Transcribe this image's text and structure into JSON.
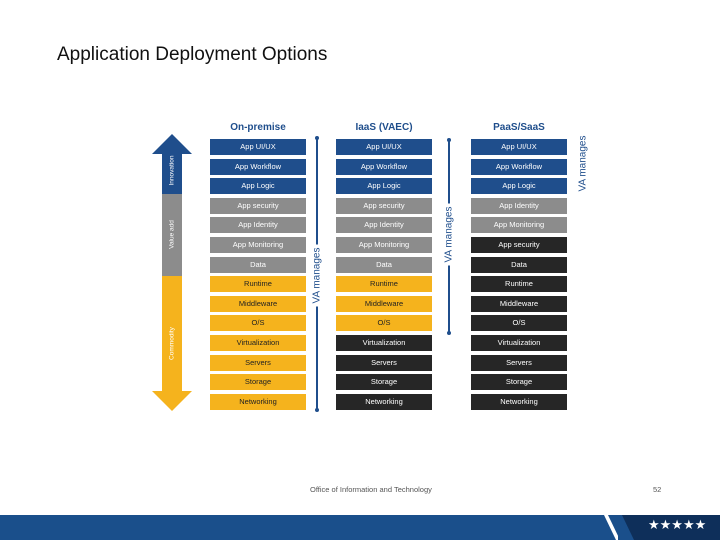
{
  "title": "Application Deployment Options",
  "columns": [
    {
      "header": "On-premise",
      "items": [
        {
          "label": "App UI/UX",
          "color": "#1f4e8c"
        },
        {
          "label": "App Workflow",
          "color": "#1f4e8c"
        },
        {
          "label": "App Logic",
          "color": "#1f4e8c"
        },
        {
          "label": "App security",
          "color": "#8c8c8c"
        },
        {
          "label": "App Identity",
          "color": "#8c8c8c"
        },
        {
          "label": "App Monitoring",
          "color": "#8c8c8c"
        },
        {
          "label": "Data",
          "color": "#8c8c8c"
        },
        {
          "label": "Runtime",
          "color": "#f5b31d"
        },
        {
          "label": "Middleware",
          "color": "#f5b31d"
        },
        {
          "label": "O/S",
          "color": "#f5b31d"
        },
        {
          "label": "Virtualization",
          "color": "#f5b31d"
        },
        {
          "label": "Servers",
          "color": "#f5b31d"
        },
        {
          "label": "Storage",
          "color": "#f5b31d"
        },
        {
          "label": "Networking",
          "color": "#f5b31d"
        }
      ]
    },
    {
      "header": "IaaS (VAEC)",
      "items": [
        {
          "label": "App UI/UX",
          "color": "#1f4e8c"
        },
        {
          "label": "App Workflow",
          "color": "#1f4e8c"
        },
        {
          "label": "App Logic",
          "color": "#1f4e8c"
        },
        {
          "label": "App security",
          "color": "#8c8c8c"
        },
        {
          "label": "App Identity",
          "color": "#8c8c8c"
        },
        {
          "label": "App Monitoring",
          "color": "#8c8c8c"
        },
        {
          "label": "Data",
          "color": "#8c8c8c"
        },
        {
          "label": "Runtime",
          "color": "#f5b31d"
        },
        {
          "label": "Middleware",
          "color": "#f5b31d"
        },
        {
          "label": "O/S",
          "color": "#f5b31d"
        },
        {
          "label": "Virtualization",
          "color": "#262626"
        },
        {
          "label": "Servers",
          "color": "#262626"
        },
        {
          "label": "Storage",
          "color": "#262626"
        },
        {
          "label": "Networking",
          "color": "#262626"
        }
      ]
    },
    {
      "header": "PaaS/SaaS",
      "items": [
        {
          "label": "App UI/UX",
          "color": "#1f4e8c"
        },
        {
          "label": "App Workflow",
          "color": "#1f4e8c"
        },
        {
          "label": "App Logic",
          "color": "#1f4e8c"
        },
        {
          "label": "App Identity",
          "color": "#8c8c8c"
        },
        {
          "label": "App Monitoring",
          "color": "#8c8c8c"
        },
        {
          "label": "App security",
          "color": "#262626"
        },
        {
          "label": "Data",
          "color": "#262626"
        },
        {
          "label": "Runtime",
          "color": "#262626"
        },
        {
          "label": "Middleware",
          "color": "#262626"
        },
        {
          "label": "O/S",
          "color": "#262626"
        },
        {
          "label": "Virtualization",
          "color": "#262626"
        },
        {
          "label": "Servers",
          "color": "#262626"
        },
        {
          "label": "Storage",
          "color": "#262626"
        },
        {
          "label": "Networking",
          "color": "#262626"
        }
      ]
    }
  ],
  "va_manages_label": "VA manages",
  "arrow": {
    "segments": [
      {
        "label": "Innovation",
        "color": "#1f4e8c"
      },
      {
        "label": "Value add",
        "color": "#8c8c8c"
      },
      {
        "label": "Commodity",
        "color": "#f5b31d"
      }
    ]
  },
  "footer": {
    "text": "Office of Information and Technology",
    "page": "52",
    "stars": "★★★★★"
  }
}
